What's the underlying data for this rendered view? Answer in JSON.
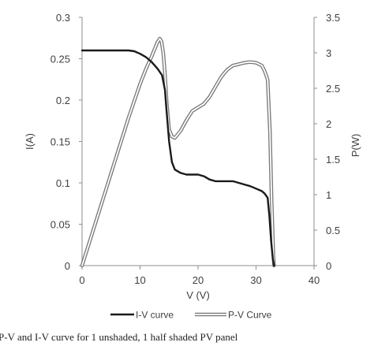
{
  "chart_data": {
    "type": "line",
    "title": "",
    "xlabel": "V (V)",
    "ylabel_left": "I(A)",
    "ylabel_right": "P(W)",
    "xlim": [
      0,
      40
    ],
    "ylim_left": [
      0,
      0.3
    ],
    "ylim_right": [
      0,
      3.5
    ],
    "x_ticks": [
      "0",
      "10",
      "20",
      "30",
      "40"
    ],
    "y_left_ticks": [
      "0",
      "0.05",
      "0.1",
      "0.15",
      "0.2",
      "0.25",
      "0.3"
    ],
    "y_right_ticks": [
      "0",
      "0.5",
      "1",
      "1.5",
      "2",
      "2.5",
      "3",
      "3.5"
    ],
    "grid": false,
    "legend_position": "bottom",
    "series": [
      {
        "name": "I-V curve",
        "axis": "left",
        "color": "#1a1a1a",
        "style": "solid",
        "x": [
          0,
          2,
          4,
          6,
          8,
          9,
          10,
          11,
          12,
          13,
          13.8,
          14.3,
          14.6,
          15,
          15.5,
          16,
          17,
          18,
          19,
          20,
          21,
          22,
          23,
          24,
          25,
          26,
          27,
          28,
          29,
          30,
          31,
          31.5,
          32,
          32.3,
          32.6,
          32.9,
          33.1
        ],
        "y": [
          0.26,
          0.26,
          0.26,
          0.26,
          0.26,
          0.259,
          0.256,
          0.252,
          0.246,
          0.238,
          0.23,
          0.212,
          0.185,
          0.15,
          0.125,
          0.116,
          0.112,
          0.11,
          0.11,
          0.11,
          0.108,
          0.104,
          0.102,
          0.102,
          0.102,
          0.102,
          0.1,
          0.098,
          0.096,
          0.093,
          0.09,
          0.087,
          0.082,
          0.06,
          0.03,
          0.008,
          0
        ]
      },
      {
        "name": "P-V Curve",
        "axis": "right",
        "color": "#7a7a7a",
        "style": "double",
        "x": [
          0,
          2,
          4,
          6,
          8,
          10,
          11,
          12,
          12.5,
          13,
          13.4,
          13.7,
          14,
          14.3,
          14.6,
          15,
          15.5,
          16,
          17,
          18,
          19,
          20,
          21,
          22,
          23,
          24,
          25,
          26,
          27,
          28,
          29,
          30,
          31,
          31.5,
          32,
          32.4,
          32.7,
          33,
          33.1
        ],
        "y": [
          0,
          0.52,
          1.04,
          1.56,
          2.08,
          2.56,
          2.77,
          2.95,
          3.05,
          3.15,
          3.2,
          3.16,
          3.0,
          2.7,
          2.3,
          1.92,
          1.82,
          1.8,
          1.9,
          2.05,
          2.18,
          2.23,
          2.28,
          2.38,
          2.52,
          2.66,
          2.76,
          2.82,
          2.84,
          2.86,
          2.87,
          2.86,
          2.82,
          2.74,
          2.62,
          1.9,
          0.9,
          0.15,
          0
        ]
      }
    ],
    "caption": "P-V and I-V curve for 1 unshaded, 1 half shaded PV panel"
  }
}
